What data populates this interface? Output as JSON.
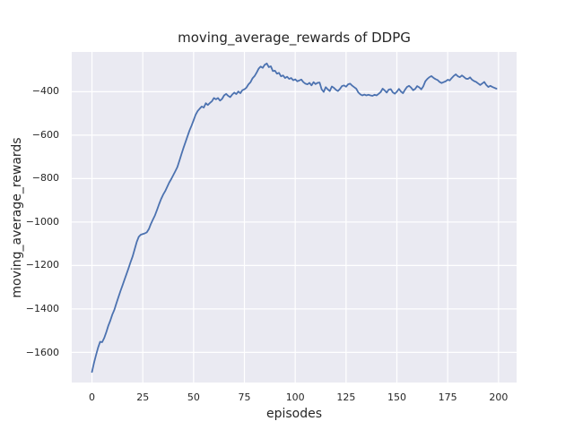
{
  "colors": {
    "figure_bg": "#ffffff",
    "plot_bg": "#eaeaf2",
    "grid": "#ffffff",
    "line": "#4c72b0",
    "text": "#262626"
  },
  "chart_data": {
    "type": "line",
    "title": "moving_average_rewards of DDPG",
    "xlabel": "episodes",
    "ylabel": "moving_average_rewards",
    "grid": true,
    "legend": "none",
    "x_ticks": [
      0,
      25,
      50,
      75,
      100,
      125,
      150,
      175,
      200
    ],
    "y_ticks": [
      -400,
      -600,
      -800,
      -1000,
      -1200,
      -1400,
      -1600
    ],
    "xlim": [
      -9.95,
      208.9
    ],
    "ylim": [
      -1741,
      -217
    ],
    "series": [
      {
        "name": "moving_average_rewards",
        "color": "#4c72b0",
        "x_start": 0,
        "x_step": 1,
        "values": [
          -1690,
          -1648,
          -1612,
          -1578,
          -1551,
          -1553,
          -1534,
          -1508,
          -1478,
          -1454,
          -1426,
          -1404,
          -1374,
          -1346,
          -1318,
          -1292,
          -1265,
          -1239,
          -1212,
          -1184,
          -1158,
          -1125,
          -1092,
          -1068,
          -1058,
          -1055,
          -1052,
          -1047,
          -1032,
          -1008,
          -988,
          -969,
          -944,
          -918,
          -894,
          -874,
          -858,
          -838,
          -818,
          -802,
          -784,
          -766,
          -747,
          -718,
          -688,
          -659,
          -632,
          -605,
          -578,
          -556,
          -531,
          -506,
          -489,
          -478,
          -468,
          -473,
          -453,
          -461,
          -452,
          -444,
          -429,
          -435,
          -429,
          -441,
          -433,
          -417,
          -410,
          -419,
          -425,
          -413,
          -404,
          -411,
          -399,
          -407,
          -393,
          -389,
          -381,
          -366,
          -356,
          -338,
          -328,
          -312,
          -294,
          -284,
          -290,
          -276,
          -270,
          -287,
          -283,
          -305,
          -303,
          -317,
          -313,
          -329,
          -325,
          -337,
          -331,
          -341,
          -337,
          -347,
          -343,
          -352,
          -348,
          -344,
          -356,
          -363,
          -366,
          -359,
          -371,
          -356,
          -365,
          -359,
          -358,
          -389,
          -401,
          -379,
          -389,
          -397,
          -376,
          -382,
          -391,
          -397,
          -387,
          -374,
          -371,
          -377,
          -366,
          -363,
          -372,
          -379,
          -386,
          -403,
          -412,
          -417,
          -413,
          -417,
          -414,
          -417,
          -419,
          -414,
          -417,
          -410,
          -402,
          -386,
          -394,
          -404,
          -390,
          -388,
          -403,
          -409,
          -400,
          -387,
          -399,
          -407,
          -391,
          -378,
          -373,
          -381,
          -393,
          -387,
          -374,
          -380,
          -389,
          -375,
          -352,
          -341,
          -333,
          -328,
          -336,
          -342,
          -346,
          -355,
          -360,
          -356,
          -352,
          -345,
          -348,
          -337,
          -327,
          -320,
          -329,
          -333,
          -325,
          -332,
          -340,
          -341,
          -334,
          -345,
          -351,
          -355,
          -362,
          -369,
          -362,
          -355,
          -369,
          -378,
          -373,
          -378,
          -382,
          -386
        ]
      }
    ]
  }
}
